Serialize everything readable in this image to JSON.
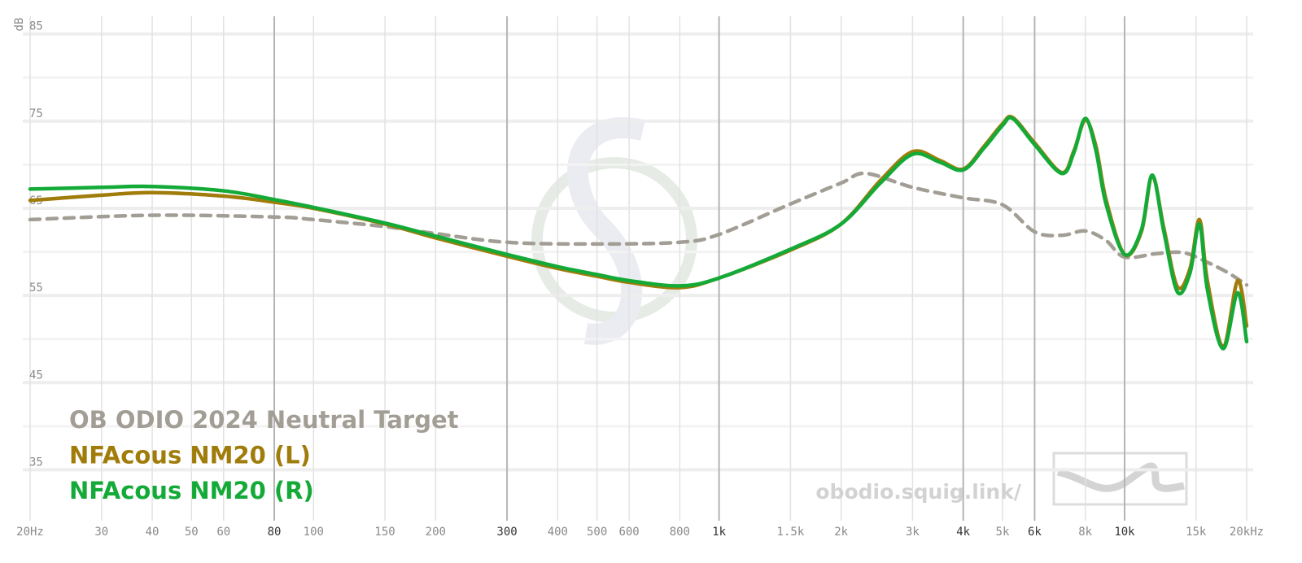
{
  "chart_data": {
    "type": "line",
    "y_label": "dB",
    "x_log": true,
    "xlim": [
      20,
      20000
    ],
    "ylim": [
      30,
      86
    ],
    "yticks": [
      35,
      45,
      55,
      65,
      75,
      85
    ],
    "y_minor_ticks": [
      40,
      50,
      60,
      70,
      80
    ],
    "xticks": [
      {
        "value": 20,
        "label": "20Hz"
      },
      30,
      40,
      50,
      60,
      80,
      100,
      150,
      200,
      300,
      400,
      500,
      600,
      800,
      {
        "value": 1000,
        "label": "1k"
      },
      {
        "value": 1500,
        "label": "1.5k"
      },
      {
        "value": 2000,
        "label": "2k"
      },
      {
        "value": 3000,
        "label": "3k"
      },
      {
        "value": 4000,
        "label": "4k"
      },
      {
        "value": 5000,
        "label": "5k"
      },
      {
        "value": 6000,
        "label": "6k"
      },
      {
        "value": 8000,
        "label": "8k"
      },
      {
        "value": 10000,
        "label": "10k"
      },
      {
        "value": 15000,
        "label": "15k"
      },
      {
        "value": 20000,
        "label": "20kHz"
      }
    ],
    "x_strong_ticks": [
      80,
      300,
      1000,
      4000,
      6000,
      10000
    ],
    "grid": true,
    "watermark": "obodio.squig.link/",
    "series": [
      {
        "name": "OB ODIO 2024 Neutral Target",
        "color": "#a29e95",
        "dashed": true,
        "x": [
          20,
          40,
          80,
          100,
          150,
          200,
          300,
          500,
          800,
          1000,
          1500,
          2000,
          2300,
          3000,
          4000,
          5000,
          6000,
          7000,
          8000,
          9000,
          10000,
          12000,
          14000,
          16000,
          18000,
          20000
        ],
        "values": [
          63.7,
          64.2,
          64.0,
          63.7,
          62.9,
          62.1,
          61.1,
          60.9,
          61.1,
          62.0,
          65.5,
          67.9,
          69.0,
          67.4,
          66.2,
          65.4,
          62.3,
          61.9,
          62.4,
          61.3,
          59.4,
          59.8,
          59.9,
          58.8,
          57.6,
          56.2
        ]
      },
      {
        "name": "NFAcous NM20 (L)",
        "color": "#a07c0b",
        "x": [
          20,
          30,
          40,
          60,
          80,
          100,
          150,
          200,
          300,
          400,
          500,
          600,
          800,
          1000,
          1500,
          2000,
          2500,
          3000,
          3500,
          4000,
          4500,
          5000,
          5300,
          6000,
          7000,
          7500,
          8000,
          8500,
          9000,
          10000,
          11000,
          11700,
          12500,
          13500,
          14500,
          15300,
          16000,
          17500,
          19000,
          20000
        ],
        "values": [
          65.9,
          66.5,
          66.8,
          66.4,
          65.7,
          65.0,
          63.2,
          61.6,
          59.5,
          58.1,
          57.2,
          56.5,
          55.9,
          57.0,
          60.2,
          63.2,
          68.2,
          71.5,
          70.5,
          69.5,
          72.1,
          74.7,
          75.4,
          72.5,
          69.1,
          71.6,
          75.1,
          72.1,
          66.0,
          59.7,
          62.3,
          68.7,
          62.7,
          56.0,
          58.1,
          63.7,
          56.7,
          49.2,
          56.7,
          51.5
        ]
      },
      {
        "name": "NFAcous NM20 (R)",
        "color": "#14aa38",
        "x": [
          20,
          30,
          40,
          60,
          80,
          100,
          150,
          200,
          300,
          400,
          500,
          600,
          800,
          1000,
          1500,
          2000,
          2500,
          3000,
          3500,
          4000,
          4500,
          5000,
          5300,
          6000,
          7000,
          7500,
          8000,
          8500,
          9000,
          10000,
          11000,
          11700,
          12500,
          13500,
          14500,
          15300,
          16000,
          17500,
          19000,
          20000
        ],
        "values": [
          67.2,
          67.4,
          67.5,
          67.0,
          66.0,
          65.1,
          63.3,
          61.8,
          59.7,
          58.3,
          57.4,
          56.7,
          56.1,
          57.0,
          60.3,
          63.2,
          67.9,
          71.2,
          70.3,
          69.4,
          71.9,
          74.5,
          75.3,
          72.3,
          69.0,
          71.4,
          75.3,
          71.6,
          65.5,
          59.7,
          62.5,
          68.8,
          62.3,
          55.4,
          57.6,
          63.2,
          55.7,
          48.9,
          55.3,
          49.7
        ]
      }
    ]
  }
}
